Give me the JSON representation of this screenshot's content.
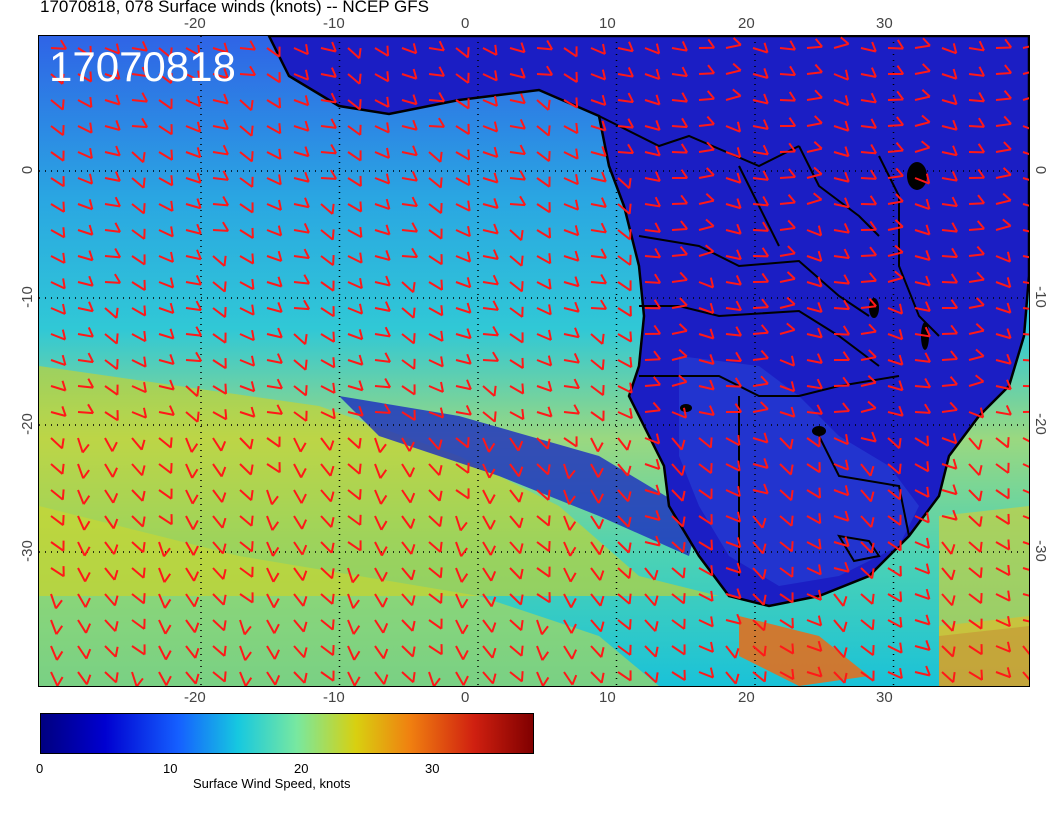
{
  "title": "17070818, 078 Surface winds (knots) -- NCEP GFS",
  "map": {
    "stamp": "17070818",
    "lon_ticks_top": [
      "-20",
      "-10",
      "0",
      "10",
      "20",
      "30"
    ],
    "lon_ticks_bottom": [
      "-20",
      "-10",
      "0",
      "10",
      "20",
      "30"
    ],
    "lat_ticks_left": [
      "0",
      "-10",
      "-20",
      "-30"
    ],
    "lat_ticks_right": [
      "0",
      "-10",
      "-20",
      "-30"
    ]
  },
  "colorbar": {
    "label": "Surface Wind Speed, knots",
    "ticks": [
      "0",
      "10",
      "20",
      "30"
    ],
    "range": [
      0,
      37.5
    ],
    "colors": [
      "#000080",
      "#0000d0",
      "#1560ff",
      "#16c8e0",
      "#78e8a0",
      "#d8d010",
      "#f08010",
      "#d02010",
      "#800000"
    ]
  },
  "colors": {
    "barb": "#ff1818",
    "coast": "#000000",
    "grid": "#000000"
  }
}
